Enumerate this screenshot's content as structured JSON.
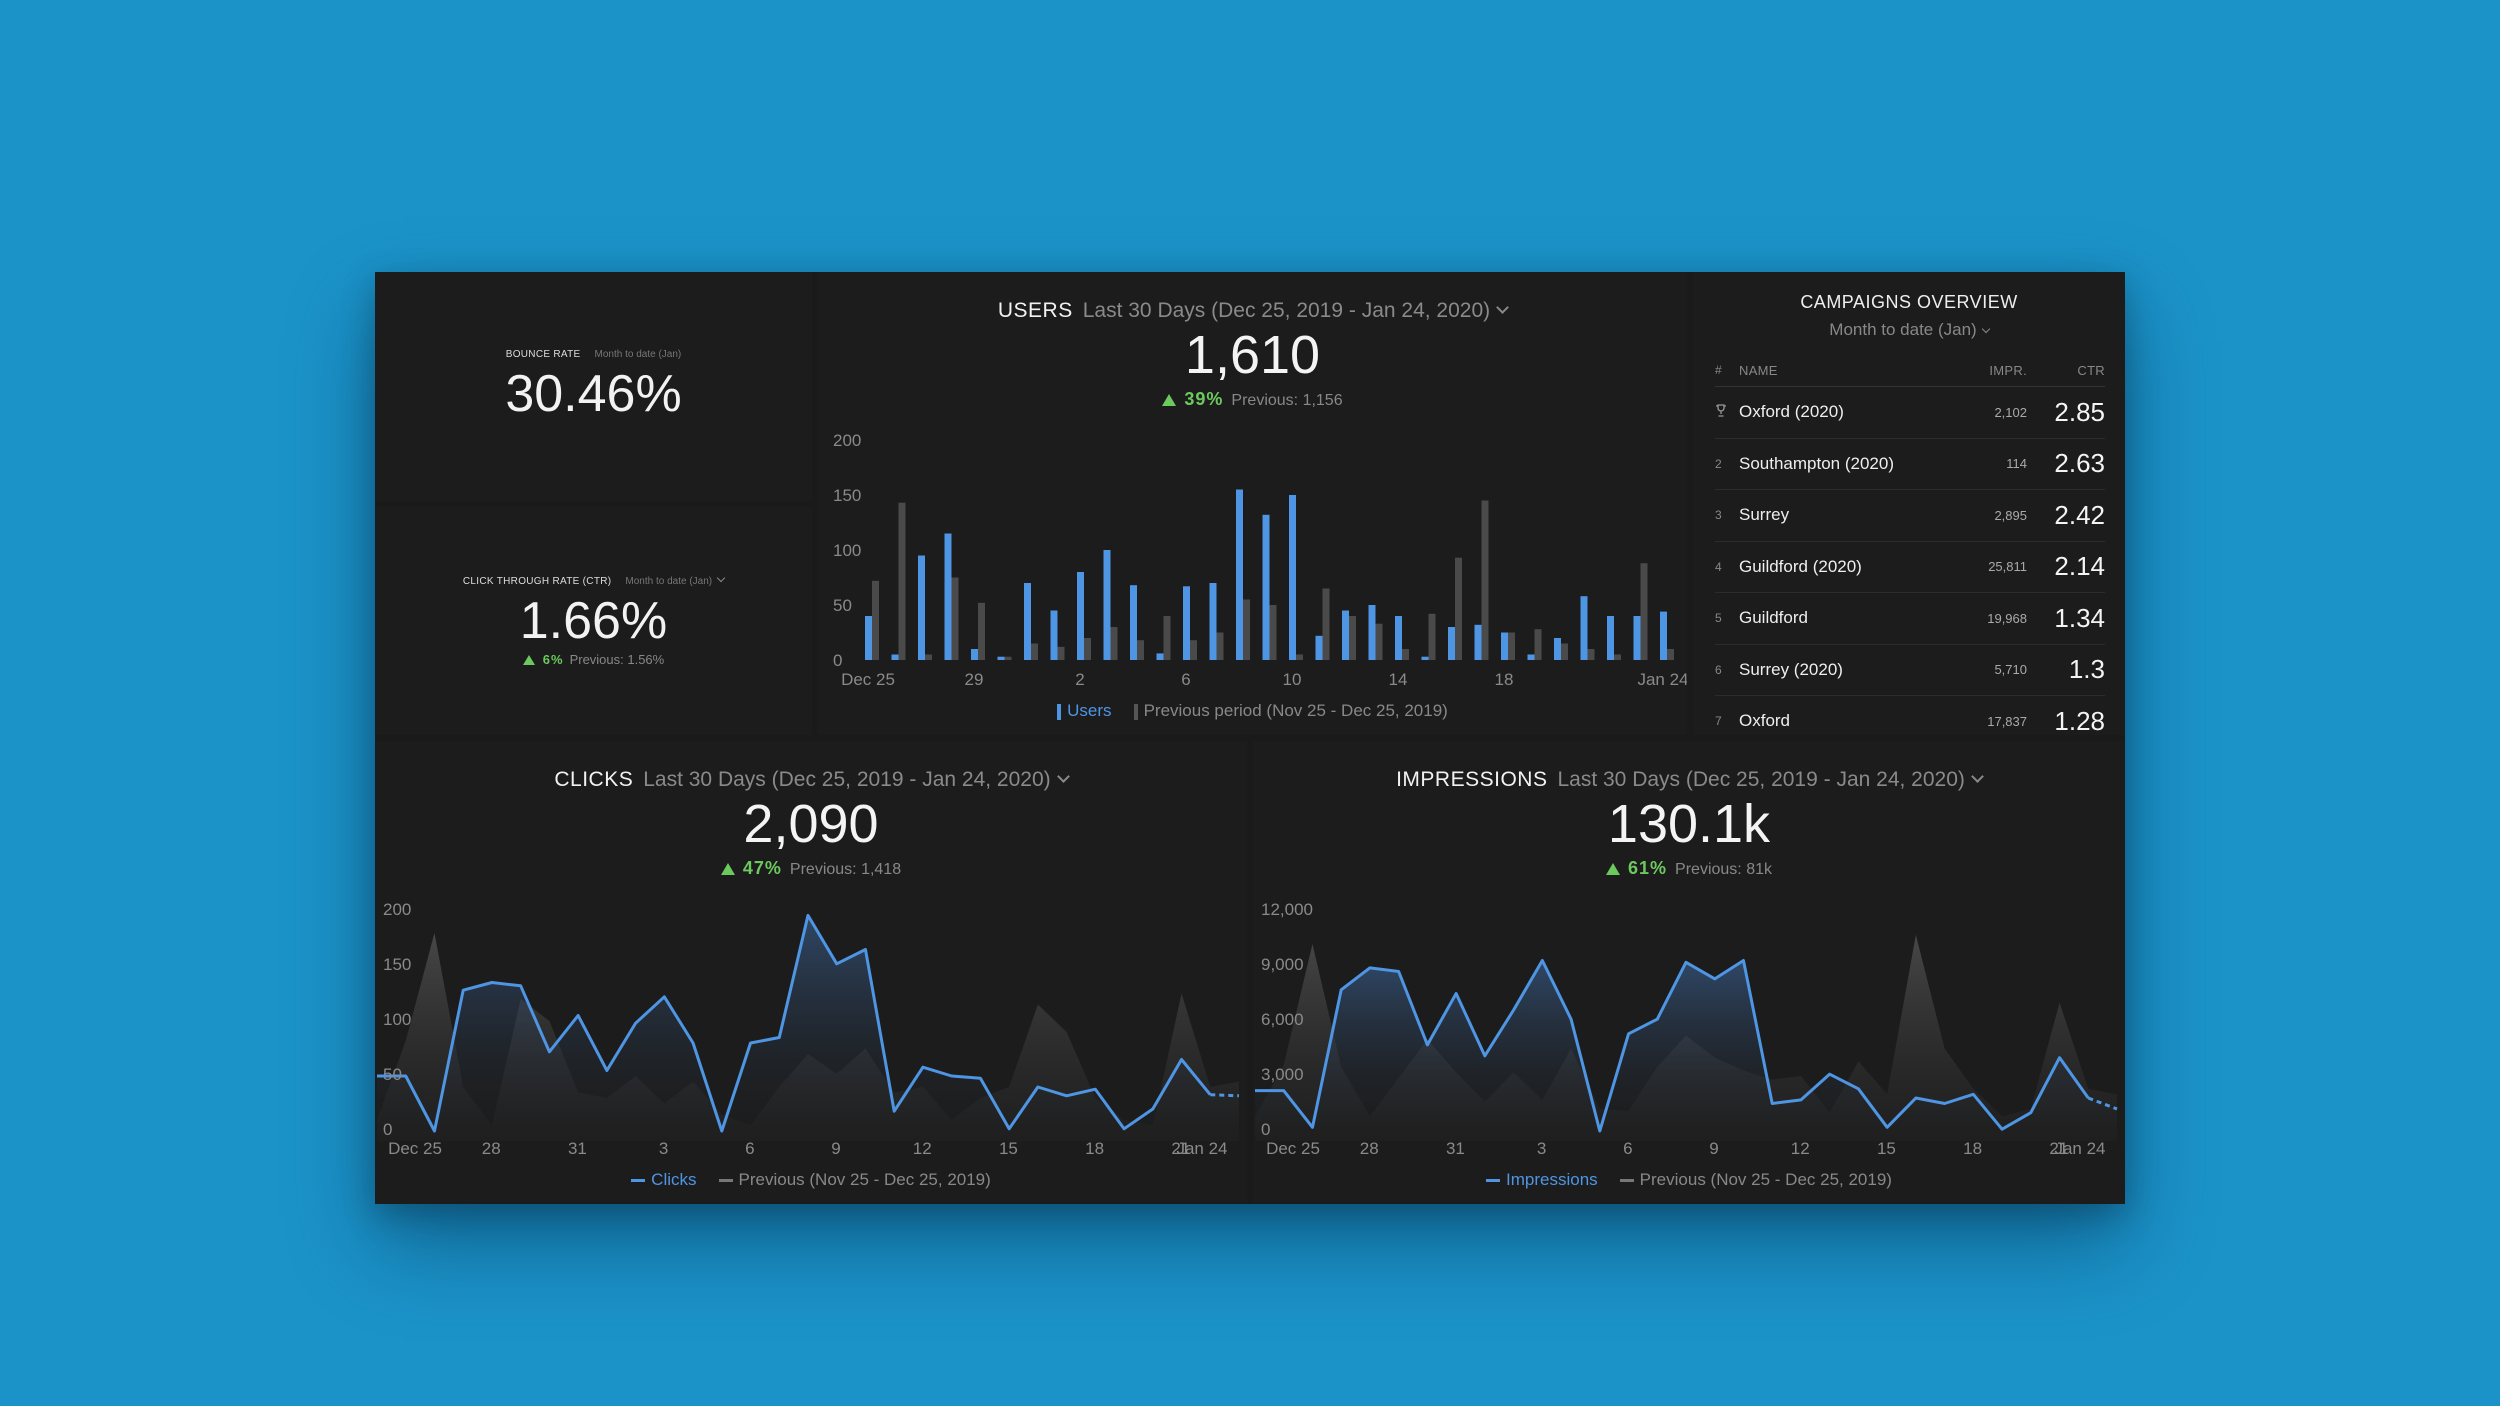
{
  "bounce": {
    "title": "BOUNCE RATE",
    "period": "Month to date (Jan)",
    "value": "30.46%"
  },
  "ctr": {
    "title": "CLICK THROUGH RATE (CTR)",
    "period": "Month to date (Jan)",
    "value": "1.66%",
    "delta": "6%",
    "previous": "Previous: 1.56%"
  },
  "users": {
    "title": "USERS",
    "period": "Last 30 Days (Dec 25, 2019 - Jan 24, 2020)",
    "value": "1,610",
    "delta": "39%",
    "previous": "Previous: 1,156",
    "legend_current": "Users",
    "legend_previous": "Previous period (Nov 25 - Dec 25, 2019)"
  },
  "campaigns": {
    "title": "CAMPAIGNS OVERVIEW",
    "period": "Month to date (Jan)",
    "headers": {
      "rank": "#",
      "name": "NAME",
      "impr": "IMPR.",
      "ctr": "CTR"
    },
    "rows": [
      {
        "rank": "1",
        "name": "Oxford (2020)",
        "impr": "2,102",
        "ctr": "2.85"
      },
      {
        "rank": "2",
        "name": "Southampton (2020)",
        "impr": "114",
        "ctr": "2.63"
      },
      {
        "rank": "3",
        "name": "Surrey",
        "impr": "2,895",
        "ctr": "2.42"
      },
      {
        "rank": "4",
        "name": "Guildford (2020)",
        "impr": "25,811",
        "ctr": "2.14"
      },
      {
        "rank": "5",
        "name": "Guildford",
        "impr": "19,968",
        "ctr": "1.34"
      },
      {
        "rank": "6",
        "name": "Surrey (2020)",
        "impr": "5,710",
        "ctr": "1.3"
      },
      {
        "rank": "7",
        "name": "Oxford",
        "impr": "17,837",
        "ctr": "1.28"
      }
    ]
  },
  "clicks": {
    "title": "CLICKS",
    "period": "Last 30 Days (Dec 25, 2019 - Jan 24, 2020)",
    "value": "2,090",
    "delta": "47%",
    "previous": "Previous: 1,418",
    "legend_current": "Clicks",
    "legend_previous": "Previous (Nov 25 - Dec 25, 2019)"
  },
  "impressions": {
    "title": "IMPRESSIONS",
    "period": "Last 30 Days (Dec 25, 2019 - Jan 24, 2020)",
    "value": "130.1k",
    "delta": "61%",
    "previous": "Previous: 81k",
    "legend_current": "Impressions",
    "legend_previous": "Previous (Nov 25 - Dec 25, 2019)"
  },
  "colors": {
    "accent": "#4e95e3",
    "previous": "#4a4a4a",
    "positive": "#6cc95e",
    "panel": "#1c1c1c",
    "background": "#1b93c9"
  },
  "chart_data": [
    {
      "id": "users",
      "type": "bar",
      "categories": [
        "Dec 25",
        "26",
        "27",
        "28",
        "29",
        "30",
        "31",
        "1",
        "2",
        "3",
        "4",
        "5",
        "6",
        "7",
        "8",
        "9",
        "10",
        "11",
        "12",
        "13",
        "14",
        "15",
        "16",
        "17",
        "18",
        "19",
        "20",
        "21",
        "22",
        "23",
        "Jan 24"
      ],
      "tick_labels": [
        "Dec 25",
        "29",
        "2",
        "6",
        "10",
        "14",
        "18",
        "Jan 24"
      ],
      "tick_indices": [
        0,
        4,
        8,
        12,
        16,
        20,
        24,
        30
      ],
      "ylim": [
        0,
        200
      ],
      "yticks": [
        0,
        50,
        100,
        150,
        200
      ],
      "series": [
        {
          "name": "Users",
          "values": [
            40,
            5,
            95,
            115,
            10,
            3,
            70,
            45,
            80,
            100,
            68,
            6,
            67,
            70,
            155,
            132,
            150,
            22,
            45,
            50,
            40,
            3,
            30,
            32,
            25,
            5,
            20,
            58,
            40,
            40,
            44
          ]
        },
        {
          "name": "Previous period (Nov 25 - Dec 25, 2019)",
          "values": [
            72,
            143,
            5,
            75,
            52,
            3,
            15,
            12,
            20,
            30,
            18,
            40,
            18,
            25,
            55,
            50,
            5,
            65,
            40,
            33,
            10,
            42,
            93,
            145,
            25,
            28,
            15,
            10,
            5,
            88,
            10
          ]
        }
      ]
    },
    {
      "id": "clicks",
      "type": "area",
      "x_tick_labels": [
        "Dec 25",
        "28",
        "31",
        "3",
        "6",
        "9",
        "12",
        "15",
        "18",
        "21",
        "Jan 24"
      ],
      "tick_indices": [
        0,
        3,
        6,
        9,
        12,
        15,
        18,
        21,
        24,
        27,
        30
      ],
      "ylim": [
        0,
        200
      ],
      "yticks": [
        0,
        50,
        100,
        150,
        200
      ],
      "series": [
        {
          "name": "Clicks",
          "values": [
            50,
            50,
            0,
            128,
            135,
            132,
            72,
            105,
            55,
            98,
            122,
            80,
            0,
            80,
            85,
            196,
            152,
            165,
            18,
            58,
            50,
            48,
            2,
            40,
            32,
            38,
            2,
            20,
            65,
            33,
            32
          ]
        },
        {
          "name": "Previous (Nov 25 - Dec 25, 2019)",
          "values": [
            10,
            82,
            180,
            40,
            5,
            120,
            100,
            35,
            30,
            50,
            25,
            45,
            15,
            5,
            40,
            70,
            52,
            75,
            35,
            40,
            10,
            30,
            40,
            115,
            90,
            30,
            10,
            5,
            125,
            40,
            45
          ]
        }
      ]
    },
    {
      "id": "impressions",
      "type": "area",
      "x_tick_labels": [
        "Dec 25",
        "28",
        "31",
        "3",
        "6",
        "9",
        "12",
        "15",
        "18",
        "21",
        "Jan 24"
      ],
      "tick_indices": [
        0,
        3,
        6,
        9,
        12,
        15,
        18,
        21,
        24,
        27,
        30
      ],
      "ylim": [
        0,
        12000
      ],
      "yticks": [
        0,
        3000,
        6000,
        9000,
        12000
      ],
      "yticklabels": [
        "0",
        "3,000",
        "6,000",
        "9,000",
        "12,000"
      ],
      "series": [
        {
          "name": "Impressions",
          "values": [
            2200,
            2200,
            200,
            7700,
            8900,
            8700,
            4700,
            7500,
            4100,
            6600,
            9300,
            6100,
            0,
            5300,
            6100,
            9200,
            8300,
            9300,
            1500,
            1700,
            3100,
            2300,
            200,
            1800,
            1500,
            2000,
            100,
            1000,
            4000,
            1800,
            1200
          ]
        },
        {
          "name": "Previous (Nov 25 - Dec 25, 2019)",
          "values": [
            800,
            3600,
            10200,
            3500,
            800,
            2900,
            5000,
            3200,
            1600,
            3200,
            1700,
            4500,
            1200,
            1100,
            3500,
            5200,
            4000,
            3300,
            2800,
            3000,
            1000,
            3800,
            2000,
            10700,
            4500,
            2300,
            800,
            1200,
            7000,
            2300,
            2000
          ]
        }
      ]
    }
  ]
}
